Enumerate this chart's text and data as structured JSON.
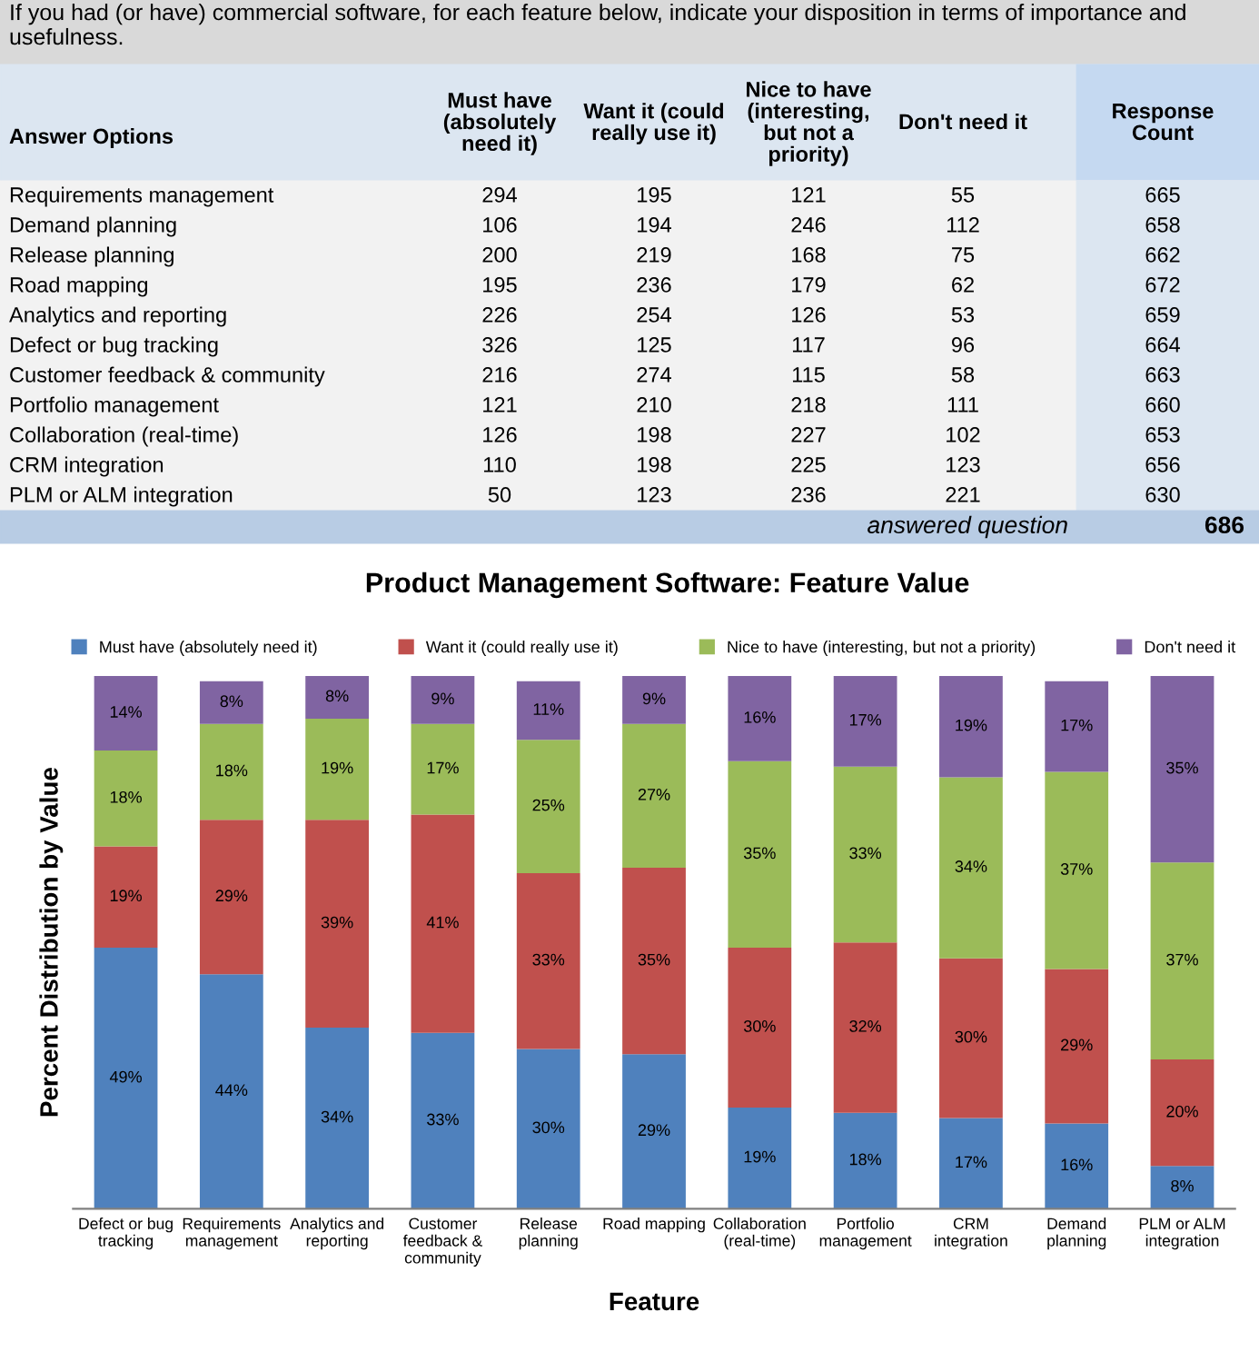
{
  "chart_data": [
    {
      "type": "other",
      "title": "If you had (or have) commercial software, for each feature below, indicate your disposition in terms of importance and usefulness.",
      "ylabel": "Answer Options",
      "categories": [
        "Requirements management",
        "Demand planning",
        "Release planning",
        "Road mapping",
        "Analytics and reporting",
        "Defect or bug tracking",
        "Customer feedback & community",
        "Portfolio management",
        "Collaboration (real-time)",
        "CRM integration",
        "PLM or ALM integration"
      ],
      "series": [
        {
          "name": "Must have (absolutely need it)",
          "values": [
            294,
            106,
            200,
            195,
            226,
            326,
            216,
            121,
            126,
            110,
            50
          ]
        },
        {
          "name": "Want it (could really use it)",
          "values": [
            195,
            194,
            219,
            236,
            254,
            125,
            274,
            210,
            198,
            198,
            123
          ]
        },
        {
          "name": "Nice to have (interesting, but not a priority)",
          "values": [
            121,
            246,
            168,
            179,
            126,
            117,
            115,
            218,
            227,
            225,
            236
          ]
        },
        {
          "name": "Don't need it",
          "values": [
            55,
            112,
            75,
            62,
            53,
            96,
            58,
            111,
            102,
            123,
            221
          ]
        },
        {
          "name": "Response Count",
          "values": [
            665,
            658,
            662,
            672,
            659,
            664,
            663,
            660,
            653,
            656,
            630
          ]
        }
      ],
      "annotations": [
        "answered question",
        "686"
      ],
      "data_labels": true
    },
    {
      "type": "bar",
      "stacked": true,
      "title": "Product Management Software: Feature Value",
      "xlabel": "Feature",
      "ylabel": "Percent Distribution by Value",
      "categories": [
        "Defect or bug tracking",
        "Requirements management",
        "Analytics and reporting",
        "Customer feedback & community",
        "Release planning",
        "Road mapping",
        "Collaboration (real-time)",
        "Portfolio management",
        "CRM integration",
        "Demand planning",
        "PLM or ALM integration"
      ],
      "series": [
        {
          "name": "Must have (absolutely need it)",
          "color": "#4f81bd",
          "values": [
            49,
            44,
            34,
            33,
            30,
            29,
            19,
            18,
            17,
            16,
            8
          ],
          "value_labels": [
            "49%",
            "44%",
            "34%",
            "33%",
            "30%",
            "29%",
            "19%",
            "18%",
            "17%",
            "16%",
            "8%"
          ]
        },
        {
          "name": "Want it (could really use it)",
          "color": "#c0504d",
          "values": [
            19,
            29,
            39,
            41,
            33,
            35,
            30,
            32,
            30,
            29,
            20
          ],
          "value_labels": [
            "19%",
            "29%",
            "39%",
            "41%",
            "33%",
            "35%",
            "30%",
            "32%",
            "30%",
            "29%",
            "20%"
          ]
        },
        {
          "name": "Nice to have (interesting, but not a priority)",
          "color": "#9bbb59",
          "values": [
            18,
            18,
            19,
            17,
            25,
            27,
            35,
            33,
            34,
            37,
            37
          ],
          "value_labels": [
            "18%",
            "18%",
            "19%",
            "17%",
            "25%",
            "27%",
            "35%",
            "33%",
            "34%",
            "37%",
            "37%"
          ]
        },
        {
          "name": "Don't need it",
          "color": "#8064a2",
          "values": [
            14,
            8,
            8,
            9,
            11,
            9,
            16,
            17,
            19,
            17,
            35
          ],
          "value_labels": [
            "14%",
            "8%",
            "8%",
            "9%",
            "11%",
            "9%",
            "16%",
            "17%",
            "19%",
            "17%",
            "35%"
          ]
        }
      ],
      "ylim": [
        0,
        100
      ],
      "tick_labels": "x",
      "legend": "top",
      "grid": false
    }
  ]
}
